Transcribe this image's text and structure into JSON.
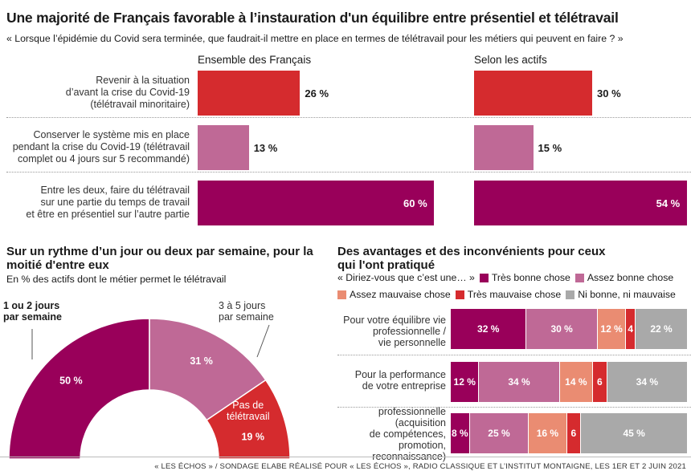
{
  "title": "Une majorité de Français favorable à l’instauration d'un équilibre entre présentiel et télétravail",
  "subtitle": "« Lorsque l’épidémie du Covid sera terminée, que faudrait-il mettre en place en termes de télétravail pour les métiers qui peuvent en faire ? »",
  "source": "« LES ÉCHOS » / SONDAGE  ELABE RÉALISÉ POUR « LES ÉCHOS », RADIO CLASSIQUE ET L’INSTITUT MONTAIGNE, LES 1ER ET 2 JUIN 2021",
  "colors": {
    "tres_bonne": "#99005a",
    "assez_bonne": "#bf6996",
    "assez_mauvaise": "#ea8c72",
    "tres_mauvaise": "#d52b2e",
    "ni": "#a9a9a9",
    "red_bar": "#d52b2e",
    "pink_bar": "#bf6996",
    "purple_bar": "#99005a"
  },
  "chart_data": [
    {
      "type": "bar",
      "orientation": "horizontal",
      "categories": [
        "Revenir à la situation d’avant la crise du Covid-19 (télétravail minoritaire)",
        "Conserver le système mis en place pendant la crise du Covid-19 (télétravail complet ou 4 jours sur 5 recommandé)",
        "Entre les deux, faire du télétravail sur une partie du temps de travail et être en présentiel sur l’autre partie"
      ],
      "category_lines": [
        [
          "Revenir à la situation",
          "d’avant la crise du Covid-19",
          "(télétravail minoritaire)"
        ],
        [
          "Conserver le système mis en place",
          "pendant la crise du Covid-19 (télétravail",
          "complet ou 4 jours sur 5 recommandé)"
        ],
        [
          "Entre les deux, faire du télétravail",
          "sur une partie du temps de travail",
          "et être en présentiel sur l’autre partie"
        ]
      ],
      "series": [
        {
          "name": "Ensemble des Français",
          "values": [
            26,
            13,
            60
          ],
          "labels": [
            "26 %",
            "13 %",
            "60 %"
          ]
        },
        {
          "name": "Selon les actifs",
          "values": [
            30,
            15,
            54
          ],
          "labels": [
            "30 %",
            "15 %",
            "54 %"
          ]
        }
      ],
      "bar_colors": [
        "#d52b2e",
        "#bf6996",
        "#99005a"
      ],
      "unit": "%"
    },
    {
      "type": "pie",
      "variant": "half-donut",
      "title": "Sur un rythme d’un jour ou deux par semaine, pour la moitié d'entre eux",
      "subtitle": "En % des actifs dont le métier permet le télétravail",
      "slices": [
        {
          "name": "1 ou 2 jours par semaine",
          "value": 50,
          "label": "50 %",
          "color": "#99005a"
        },
        {
          "name": "3 à 5 jours par semaine",
          "value": 31,
          "label": "31 %",
          "color": "#bf6996"
        },
        {
          "name": "Pas de télétravail",
          "value": 19,
          "label": "19 %",
          "color": "#d52b2e"
        }
      ],
      "slice_lines": [
        [
          "1 ou 2 jours",
          "par semaine"
        ],
        [
          "3 à 5 jours",
          "par semaine"
        ],
        [
          "Pas de",
          "télétravail"
        ]
      ]
    },
    {
      "type": "bar",
      "variant": "stacked-100-horizontal",
      "title": "Des avantages et des inconvénients pour ceux qui l'ont pratiqué",
      "title_lines": [
        "Des avantages et des inconvénients pour ceux",
        "qui l'ont pratiqué"
      ],
      "question": "« Diriez-vous que c’est une… »",
      "categories": [
        "Pour votre équilibre vie professionnelle / vie personnelle",
        "Pour la performance de votre entreprise",
        "professionnelle (acquisition de compétences, promotion, reconnaissance)"
      ],
      "category_lines": [
        [
          "Pour votre équilibre vie",
          "professionnelle /",
          "vie personnelle"
        ],
        [
          "Pour la performance",
          "de votre entreprise"
        ],
        [
          "professionnelle",
          "(acquisition",
          "de compétences,",
          "promotion,",
          "reconnaissance)"
        ]
      ],
      "series": [
        {
          "name": "Très bonne chose",
          "color": "#99005a",
          "values": [
            32,
            12,
            8
          ],
          "labels": [
            "32 %",
            "12 %",
            "8 %"
          ]
        },
        {
          "name": "Assez bonne chose",
          "color": "#bf6996",
          "values": [
            30,
            34,
            25
          ],
          "labels": [
            "30 %",
            "34 %",
            "25 %"
          ]
        },
        {
          "name": "Assez mauvaise chose",
          "color": "#ea8c72",
          "values": [
            12,
            14,
            16
          ],
          "labels": [
            "12 %",
            "14 %",
            "16 %"
          ]
        },
        {
          "name": "Très mauvaise chose",
          "color": "#d52b2e",
          "values": [
            4,
            6,
            6
          ],
          "labels": [
            "4",
            "6",
            "6"
          ]
        },
        {
          "name": "Ni bonne, ni mauvaise",
          "color": "#a9a9a9",
          "values": [
            22,
            34,
            45
          ],
          "labels": [
            "22 %",
            "34 %",
            "45 %"
          ]
        }
      ]
    }
  ]
}
